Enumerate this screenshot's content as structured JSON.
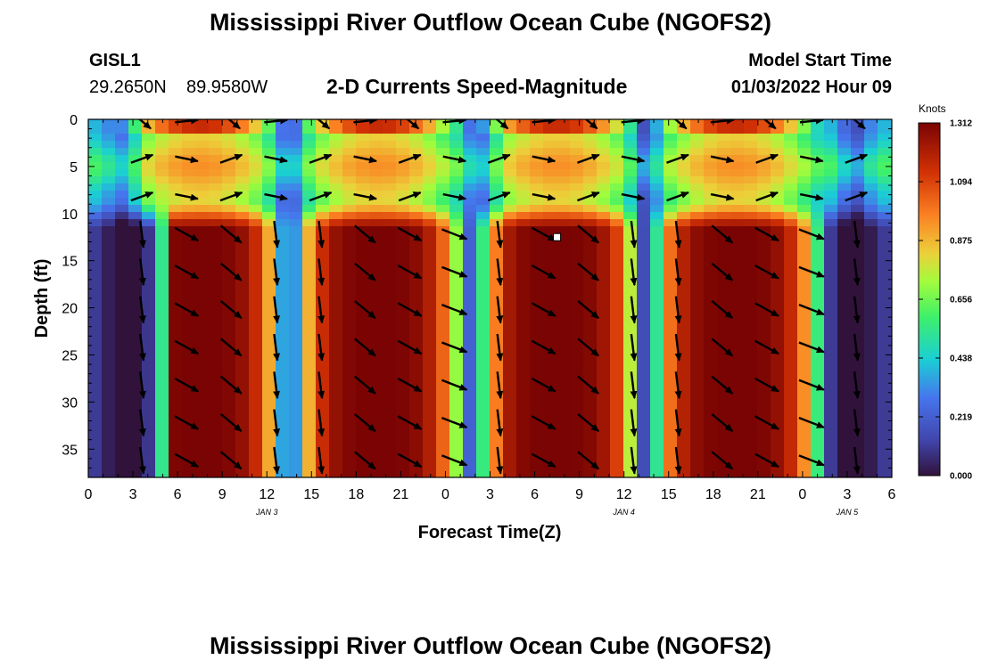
{
  "title": "Mississippi River Outflow Ocean Cube (NGOFS2)",
  "title_repeat": "Mississippi River Outflow Ocean Cube (NGOFS2)",
  "station": {
    "id": "GISL1",
    "lat": "29.2650N",
    "lon": "89.9580W"
  },
  "model": {
    "label": "Model Start Time",
    "start": "01/03/2022 Hour 09"
  },
  "chart_data": {
    "type": "heatmap",
    "title": "2-D Currents Speed-Magnitude",
    "xlabel": "Forecast Time(Z)",
    "ylabel": "Depth (ft)",
    "x_range_hours": [
      0,
      54
    ],
    "ylim": [
      0,
      38
    ],
    "x_ticks": [
      "0",
      "3",
      "6",
      "9",
      "12",
      "15",
      "18",
      "21",
      "0",
      "3",
      "6",
      "9",
      "12",
      "15",
      "18",
      "21",
      "0",
      "3",
      "6"
    ],
    "y_ticks": [
      "0",
      "5",
      "10",
      "15",
      "20",
      "25",
      "30",
      "35"
    ],
    "date_labels": [
      {
        "text": "JAN 3",
        "hour": 12
      },
      {
        "text": "JAN 4",
        "hour": 36
      },
      {
        "text": "JAN 5",
        "hour": 51
      }
    ],
    "colorbar": {
      "unit": "Knots",
      "min": 0.0,
      "max": 1.312,
      "ticks": [
        "0.000",
        "0.219",
        "0.438",
        "0.656",
        "0.875",
        "1.094",
        "1.312"
      ]
    },
    "surface_peaks_hours": [
      7.5,
      19.5,
      31.5,
      43.5
    ],
    "subsurface_peaks_hours": [
      7.5,
      19.5,
      31.5,
      43.5
    ],
    "slack_hours": [
      2.5,
      13.5,
      26.5,
      37.5,
      51.5
    ],
    "marker": {
      "hour": 31.5,
      "depth": 12.5
    }
  }
}
